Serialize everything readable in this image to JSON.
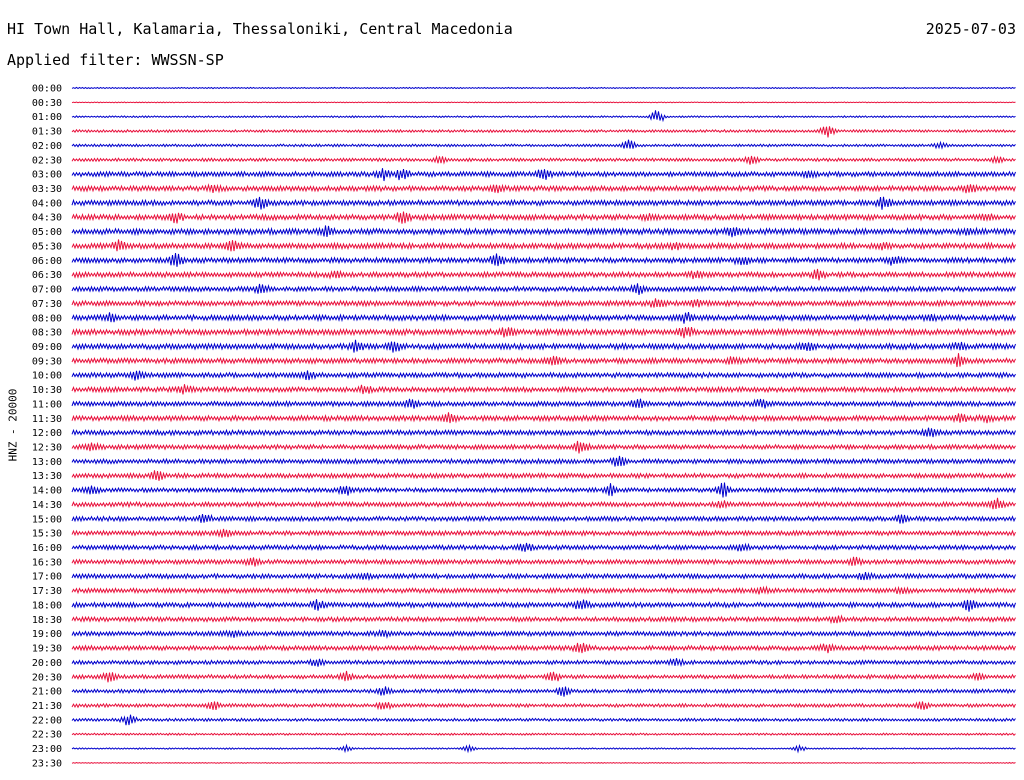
{
  "header": {
    "station": "HI Town Hall, Kalamaria, Thessaloniki, Central Macedonia",
    "date": "2025-07-03",
    "filter": "Applied filter: WWSSN-SP"
  },
  "chart_data": {
    "type": "line",
    "title": "HI Town Hall, Kalamaria, Thessaloniki, Central Macedonia",
    "subtitle": "Applied filter: WWSSN-SP",
    "ylabel": "HNZ - 20000",
    "xlabel": "",
    "grid": false,
    "colors": [
      "#0000cc",
      "#e8113c"
    ],
    "trace_labels": [
      "00:00",
      "00:30",
      "01:00",
      "01:30",
      "02:00",
      "02:30",
      "03:00",
      "03:30",
      "04:00",
      "04:30",
      "05:00",
      "05:30",
      "06:00",
      "06:30",
      "07:00",
      "07:30",
      "08:00",
      "08:30",
      "09:00",
      "09:30",
      "10:00",
      "10:30",
      "11:00",
      "11:30",
      "12:00",
      "12:30",
      "13:00",
      "13:30",
      "14:00",
      "14:30",
      "15:00",
      "15:30",
      "16:00",
      "16:30",
      "17:00",
      "17:30",
      "18:00",
      "18:30",
      "19:00",
      "19:30",
      "20:00",
      "20:30",
      "21:00",
      "21:30",
      "22:00",
      "22:30",
      "23:00",
      "23:30"
    ],
    "noise_level": [
      0.4,
      0.3,
      0.6,
      0.9,
      0.9,
      1.1,
      1.7,
      1.8,
      1.8,
      1.9,
      2.0,
      1.9,
      1.8,
      1.8,
      1.7,
      1.8,
      1.9,
      2.0,
      1.9,
      1.8,
      1.7,
      1.7,
      1.7,
      1.8,
      1.7,
      1.6,
      1.6,
      1.6,
      1.5,
      1.6,
      1.6,
      1.6,
      1.6,
      1.6,
      1.6,
      1.6,
      1.7,
      1.6,
      1.6,
      1.6,
      1.4,
      1.4,
      1.3,
      1.2,
      1.0,
      0.7,
      0.5,
      0.3
    ],
    "bursts": [
      [],
      [],
      [
        [
          0.62,
          5
        ]
      ],
      [
        [
          0.8,
          4
        ]
      ],
      [
        [
          0.59,
          4
        ],
        [
          0.92,
          2
        ]
      ],
      [
        [
          0.39,
          2
        ],
        [
          0.72,
          3
        ],
        [
          0.98,
          2
        ]
      ],
      [
        [
          0.33,
          4
        ],
        [
          0.35,
          4
        ],
        [
          0.5,
          4
        ],
        [
          0.78,
          2
        ]
      ],
      [
        [
          0.15,
          2
        ],
        [
          0.45,
          2
        ],
        [
          0.95,
          3
        ]
      ],
      [
        [
          0.2,
          4
        ],
        [
          0.86,
          4
        ]
      ],
      [
        [
          0.11,
          3
        ],
        [
          0.35,
          4
        ],
        [
          0.61,
          2
        ],
        [
          0.97,
          2
        ]
      ],
      [
        [
          0.27,
          3
        ],
        [
          0.7,
          3
        ],
        [
          0.95,
          2
        ]
      ],
      [
        [
          0.05,
          3
        ],
        [
          0.17,
          4
        ],
        [
          0.64,
          2
        ],
        [
          0.86,
          2
        ]
      ],
      [
        [
          0.11,
          4
        ],
        [
          0.45,
          4
        ],
        [
          0.71,
          3
        ],
        [
          0.87,
          3
        ]
      ],
      [
        [
          0.28,
          2
        ],
        [
          0.66,
          2
        ],
        [
          0.79,
          3
        ]
      ],
      [
        [
          0.2,
          3
        ],
        [
          0.6,
          3
        ]
      ],
      [
        [
          0.62,
          3
        ],
        [
          0.66,
          2
        ]
      ],
      [
        [
          0.04,
          3
        ],
        [
          0.65,
          3
        ],
        [
          0.91,
          2
        ]
      ],
      [
        [
          0.46,
          3
        ],
        [
          0.65,
          4
        ]
      ],
      [
        [
          0.3,
          4
        ],
        [
          0.34,
          4
        ],
        [
          0.78,
          3
        ],
        [
          0.94,
          2
        ]
      ],
      [
        [
          0.51,
          3
        ],
        [
          0.7,
          2
        ],
        [
          0.94,
          4
        ]
      ],
      [
        [
          0.07,
          3
        ],
        [
          0.25,
          3
        ]
      ],
      [
        [
          0.12,
          3
        ],
        [
          0.31,
          3
        ]
      ],
      [
        [
          0.36,
          3
        ],
        [
          0.6,
          3
        ],
        [
          0.73,
          3
        ]
      ],
      [
        [
          0.4,
          3
        ],
        [
          0.94,
          3
        ],
        [
          0.97,
          2
        ]
      ],
      [
        [
          0.91,
          3
        ]
      ],
      [
        [
          0.02,
          3
        ],
        [
          0.54,
          5
        ]
      ],
      [
        [
          0.58,
          4
        ]
      ],
      [
        [
          0.09,
          3
        ]
      ],
      [
        [
          0.02,
          3
        ],
        [
          0.29,
          3
        ],
        [
          0.57,
          4
        ],
        [
          0.69,
          5
        ]
      ],
      [
        [
          0.69,
          2
        ],
        [
          0.98,
          4
        ]
      ],
      [
        [
          0.14,
          3
        ],
        [
          0.88,
          3
        ]
      ],
      [
        [
          0.16,
          3
        ]
      ],
      [
        [
          0.48,
          3
        ],
        [
          0.71,
          2
        ]
      ],
      [
        [
          0.19,
          3
        ],
        [
          0.83,
          3
        ]
      ],
      [
        [
          0.31,
          2
        ],
        [
          0.84,
          2
        ]
      ],
      [
        [
          0.73,
          2
        ],
        [
          0.88,
          2
        ]
      ],
      [
        [
          0.26,
          3
        ],
        [
          0.54,
          4
        ],
        [
          0.95,
          3
        ]
      ],
      [
        [
          0.81,
          2
        ]
      ],
      [
        [
          0.17,
          2
        ],
        [
          0.33,
          2
        ]
      ],
      [
        [
          0.54,
          4
        ],
        [
          0.8,
          3
        ]
      ],
      [
        [
          0.26,
          3
        ],
        [
          0.64,
          2
        ]
      ],
      [
        [
          0.04,
          3
        ],
        [
          0.29,
          3
        ],
        [
          0.51,
          3
        ],
        [
          0.96,
          2
        ]
      ],
      [
        [
          0.33,
          3
        ],
        [
          0.52,
          4
        ]
      ],
      [
        [
          0.15,
          3
        ],
        [
          0.33,
          3
        ],
        [
          0.9,
          3
        ]
      ],
      [
        [
          0.06,
          4
        ]
      ],
      [],
      [
        [
          0.29,
          2
        ],
        [
          0.42,
          2
        ],
        [
          0.77,
          2
        ]
      ],
      []
    ]
  }
}
